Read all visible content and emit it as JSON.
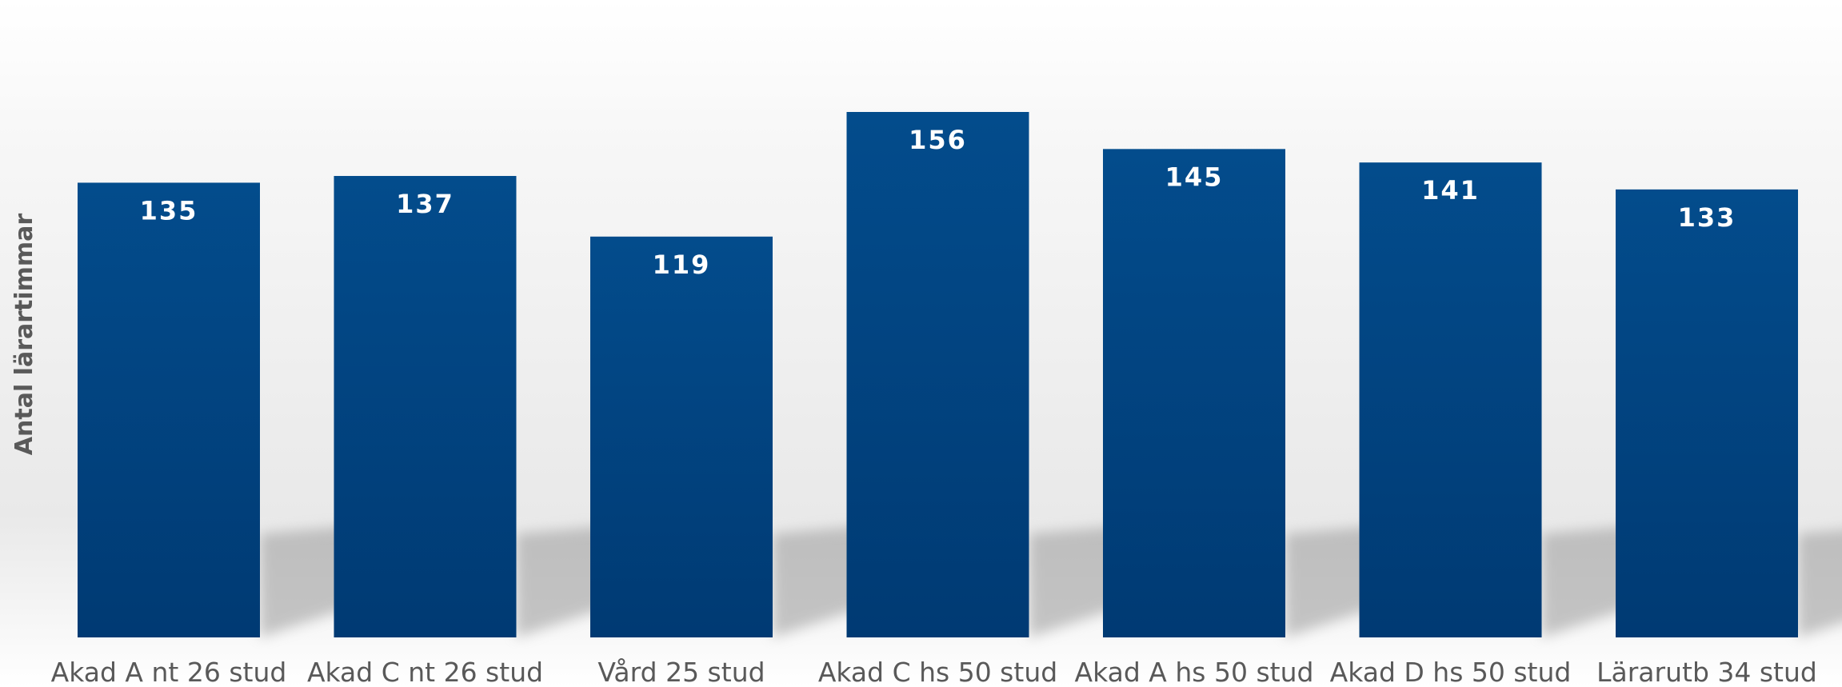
{
  "chart_data": {
    "type": "bar",
    "title": "",
    "xlabel": "",
    "ylabel": "Antal lärartimmar",
    "categories": [
      "Akad A nt 26 stud",
      "Akad C nt 26 stud",
      "Vård 25 stud",
      "Akad C hs 50 stud",
      "Akad A hs 50 stud",
      "Akad D hs 50 stud",
      "Lärarutb 34 stud"
    ],
    "values": [
      135,
      137,
      119,
      156,
      145,
      141,
      133
    ],
    "data_labels": [
      "135",
      "137",
      "119",
      "156",
      "145",
      "141",
      "133"
    ],
    "ylim": [
      0,
      185
    ],
    "grid": false,
    "legend": "none",
    "colors": {
      "bar_top": "#034c8c",
      "bar_bottom": "#003a73",
      "label": "#ffffff",
      "axis_text": "#595959"
    }
  }
}
